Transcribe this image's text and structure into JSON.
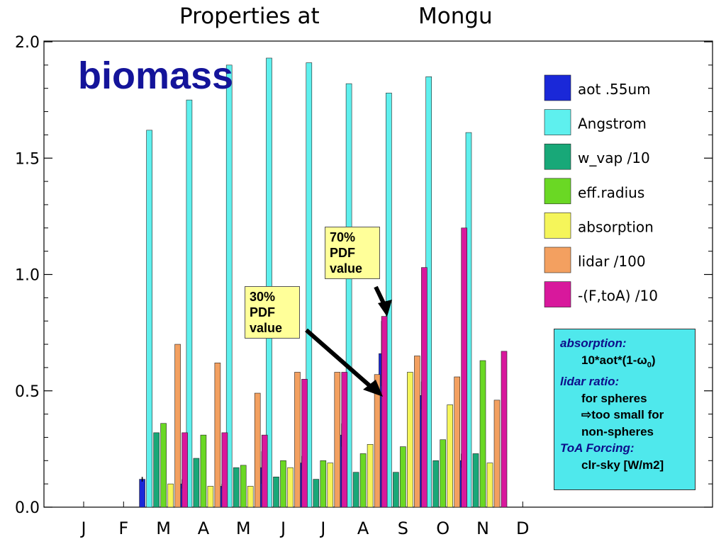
{
  "chart_data": {
    "type": "bar",
    "title_left": "Properties at",
    "title_right": "Mongu",
    "categories": [
      "J",
      "F",
      "M",
      "A",
      "M",
      "J",
      "J",
      "A",
      "S",
      "O",
      "N",
      "D"
    ],
    "yticks": [
      "0.0",
      "0.5",
      "1.0",
      "1.5",
      "2.0"
    ],
    "ylim": [
      0,
      2.0
    ],
    "legend_position": "right",
    "series": [
      {
        "name": "aot .55um",
        "color": "#1a28d8",
        "values": [
          null,
          null,
          0.12,
          0.1,
          0.09,
          0.17,
          0.19,
          0.31,
          0.66,
          0.48,
          0.2,
          null
        ],
        "error": [
          null,
          null,
          0.01,
          0.02,
          0.01,
          0.07,
          0.03,
          0.05,
          0.14,
          0.06,
          0.03,
          null
        ]
      },
      {
        "name": "Angstrom",
        "color": "#5ef0ee",
        "values": [
          null,
          null,
          1.62,
          1.75,
          1.9,
          1.93,
          1.91,
          1.82,
          1.78,
          1.85,
          1.61,
          null
        ]
      },
      {
        "name": "w_vap /10",
        "color": "#18a878",
        "values": [
          null,
          null,
          0.32,
          0.21,
          0.17,
          0.13,
          0.12,
          0.15,
          0.15,
          0.2,
          0.23,
          null
        ]
      },
      {
        "name": "eff.radius",
        "color": "#6ad824",
        "values": [
          null,
          null,
          0.36,
          0.31,
          0.18,
          0.2,
          0.2,
          0.23,
          0.26,
          0.29,
          0.63,
          null
        ]
      },
      {
        "name": "absorption",
        "color": "#f5f55a",
        "values": [
          null,
          null,
          0.1,
          0.09,
          0.09,
          0.17,
          0.19,
          0.27,
          0.58,
          0.44,
          0.19,
          null
        ]
      },
      {
        "name": "lidar /100",
        "color": "#f3a060",
        "values": [
          null,
          null,
          0.7,
          0.62,
          0.49,
          0.58,
          0.58,
          0.57,
          0.65,
          0.56,
          0.46,
          null
        ]
      },
      {
        "name": "-(F,toA) /10",
        "color": "#d8189c",
        "values": [
          null,
          null,
          0.32,
          0.32,
          0.31,
          0.55,
          0.58,
          0.82,
          1.03,
          1.2,
          0.67,
          null
        ]
      }
    ]
  },
  "overlay": {
    "label": "biomass",
    "callout_70": [
      "70%",
      "PDF",
      "value"
    ],
    "callout_30": [
      "30%",
      "PDF",
      "value"
    ]
  },
  "notes": {
    "absorption_heading": "absorption:",
    "absorption_formula_prefix": "10*aot*(1-",
    "absorption_formula_symbol": "ω",
    "absorption_formula_sub": "0",
    "absorption_formula_suffix": ")",
    "lidar_heading": "lidar ratio:",
    "lidar_line1": "for spheres",
    "lidar_arrow": "⇨",
    "lidar_line2": "too small for",
    "lidar_line3": "non-spheres",
    "toa_heading": "ToA Forcing:",
    "toa_value": "clr-sky [W/m2]"
  }
}
